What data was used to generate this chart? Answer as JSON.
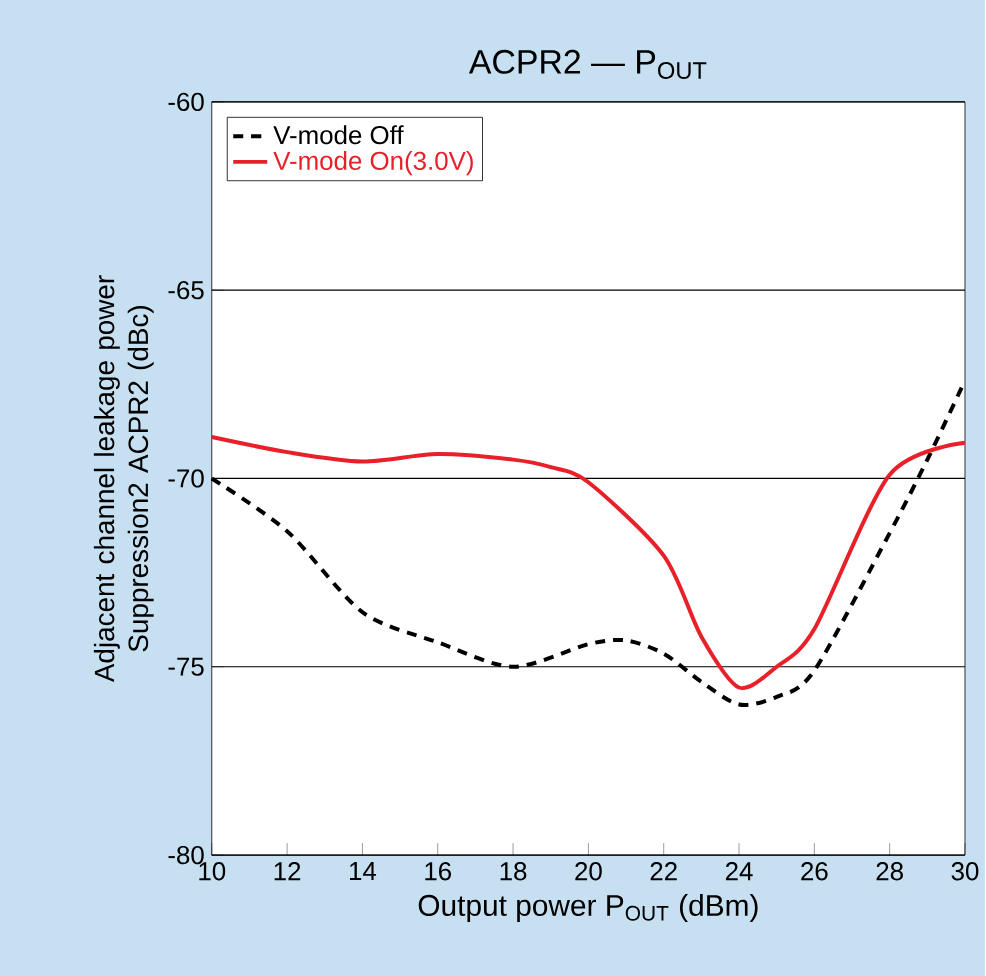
{
  "chart_data": {
    "type": "line",
    "title": "ACPR2 — P$_{OUT}$",
    "xlabel": "Output power  P$_{OUT}$  (dBm)",
    "ylabel": "Adjacent channel leakage power Suppression2  ACPR2 (dBc)",
    "xlim": [
      10,
      30
    ],
    "xticks": [
      10,
      12,
      14,
      16,
      18,
      20,
      22,
      24,
      26,
      28,
      30
    ],
    "ylim": [
      -80,
      -60
    ],
    "yticks": [
      -80,
      -75,
      -70,
      -65,
      -60
    ],
    "grid": "y",
    "legend": "top left",
    "series": [
      {
        "name": "V-mode Off",
        "color": "#000000",
        "line_style": "dashed",
        "x": [
          10,
          12,
          14,
          16,
          18,
          20,
          21,
          22,
          23,
          24,
          25,
          26,
          28,
          29,
          30
        ],
        "values": [
          -70,
          -71.4,
          -73.55,
          -74.35,
          -75,
          -74.4,
          -74.3,
          -74.65,
          -75.4,
          -76,
          -75.8,
          -75.1,
          -71.45,
          -69.5,
          -67.4
        ]
      },
      {
        "name": "V-mode On(3.0V)",
        "color": "#e8202a",
        "line_style": "solid",
        "x": [
          10,
          12,
          14,
          16,
          18,
          19,
          20,
          22,
          23,
          24,
          25,
          26,
          28,
          30
        ],
        "values": [
          -68.9,
          -69.3,
          -69.55,
          -69.35,
          -69.5,
          -69.7,
          -70.1,
          -72.05,
          -74.2,
          -75.55,
          -75.0,
          -74.0,
          -69.9,
          -69.05
        ]
      }
    ]
  }
}
